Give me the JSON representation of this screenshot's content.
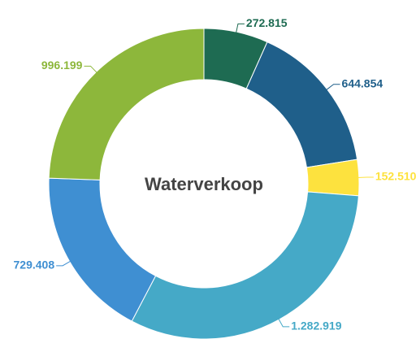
{
  "chart_data": {
    "type": "donut",
    "title": "Waterverkoop",
    "values": [
      272815,
      644854,
      152510,
      1282919,
      729408,
      996199
    ],
    "value_labels": [
      "272.815",
      "644.854",
      "152.510",
      "1.282.919",
      "729.408",
      "996.199"
    ],
    "colors": [
      "#1e6b52",
      "#1f5f8a",
      "#fde23e",
      "#45a9c7",
      "#3f8fd2",
      "#8db73b"
    ]
  }
}
